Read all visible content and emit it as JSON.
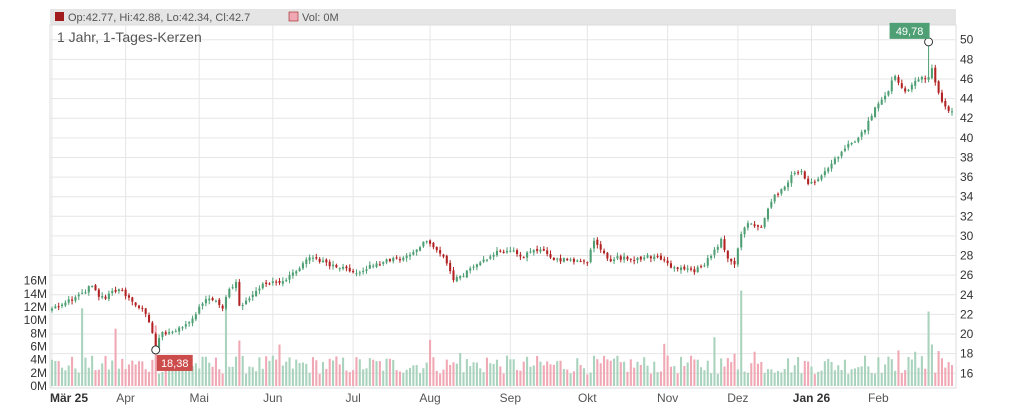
{
  "legend": {
    "ohlc_text": "Op:42.77, Hi:42.88, Lo:42.34, Cl:42.7",
    "volume_text": "Vol: 0M"
  },
  "subtitle": "1 Jahr, 1-Tages-Kerzen",
  "colors": {
    "up": "#4e9f73",
    "down": "#b22222",
    "vol_up": "#a9d3bd",
    "vol_down": "#f0a8b4",
    "grid": "#e6e6e6",
    "high_flag": "#4e9f73",
    "low_flag": "#cc4b4b",
    "legend_ohlc": "#a11c1c",
    "legend_vol": "#f0a8b4"
  },
  "chart_data": {
    "type": "candlestick",
    "price_axis": {
      "min": 14.5,
      "max": 51.5,
      "ticks": [
        16,
        18,
        20,
        22,
        24,
        26,
        28,
        30,
        32,
        34,
        36,
        38,
        40,
        42,
        44,
        46,
        48,
        50
      ]
    },
    "volume_axis": {
      "max": 17,
      "ticks": [
        "0M",
        "2M",
        "4M",
        "6M",
        "8M",
        "10M",
        "12M",
        "14M",
        "16M"
      ]
    },
    "x_labels": [
      {
        "label": "Mär 25",
        "index": 0,
        "bold": true
      },
      {
        "label": "Apr",
        "index": 22
      },
      {
        "label": "Mai",
        "index": 44
      },
      {
        "label": "Jun",
        "index": 66
      },
      {
        "label": "Jul",
        "index": 90
      },
      {
        "label": "Aug",
        "index": 113
      },
      {
        "label": "Sep",
        "index": 137
      },
      {
        "label": "Okt",
        "index": 160
      },
      {
        "label": "Nov",
        "index": 184
      },
      {
        "label": "Dez",
        "index": 205
      },
      {
        "label": "Jan 26",
        "index": 227,
        "bold": true
      },
      {
        "label": "Feb",
        "index": 247
      }
    ],
    "annotations": {
      "high": {
        "label": "49,78",
        "index": 262,
        "value": 49.78
      },
      "low": {
        "label": "18,38",
        "index": 31,
        "value": 18.38
      }
    },
    "candle_count": 270,
    "anchors": [
      [
        0,
        22.6
      ],
      [
        3,
        23.0
      ],
      [
        6,
        23.4
      ],
      [
        9,
        24.2
      ],
      [
        12,
        24.9
      ],
      [
        14,
        23.8
      ],
      [
        16,
        23.6
      ],
      [
        18,
        24.4
      ],
      [
        21,
        24.4
      ],
      [
        24,
        23.3
      ],
      [
        27,
        22.6
      ],
      [
        29,
        21.2
      ],
      [
        31,
        18.6
      ],
      [
        33,
        20.2
      ],
      [
        35,
        20.2
      ],
      [
        37,
        20.3
      ],
      [
        40,
        21.0
      ],
      [
        43,
        22.0
      ],
      [
        45,
        23.1
      ],
      [
        47,
        23.6
      ],
      [
        49,
        23.4
      ],
      [
        51,
        22.6
      ],
      [
        53,
        24.6
      ],
      [
        55,
        25.3
      ],
      [
        56,
        22.9
      ],
      [
        58,
        23.4
      ],
      [
        61,
        24.4
      ],
      [
        64,
        25.1
      ],
      [
        67,
        25.3
      ],
      [
        70,
        25.5
      ],
      [
        73,
        26.4
      ],
      [
        76,
        27.6
      ],
      [
        79,
        27.7
      ],
      [
        82,
        27.3
      ],
      [
        85,
        26.8
      ],
      [
        88,
        26.7
      ],
      [
        91,
        26.2
      ],
      [
        94,
        26.6
      ],
      [
        97,
        27.2
      ],
      [
        100,
        27.6
      ],
      [
        103,
        27.7
      ],
      [
        106,
        28.0
      ],
      [
        109,
        28.6
      ],
      [
        111,
        29.4
      ],
      [
        113,
        29.2
      ],
      [
        116,
        28.2
      ],
      [
        118,
        27.2
      ],
      [
        120,
        25.5
      ],
      [
        122,
        25.9
      ],
      [
        125,
        26.7
      ],
      [
        128,
        27.3
      ],
      [
        131,
        27.9
      ],
      [
        134,
        28.4
      ],
      [
        137,
        28.5
      ],
      [
        140,
        27.9
      ],
      [
        143,
        28.4
      ],
      [
        146,
        28.6
      ],
      [
        149,
        27.8
      ],
      [
        152,
        27.4
      ],
      [
        155,
        27.6
      ],
      [
        158,
        27.4
      ],
      [
        160,
        27.3
      ],
      [
        162,
        29.5
      ],
      [
        164,
        28.6
      ],
      [
        166,
        27.7
      ],
      [
        168,
        27.6
      ],
      [
        171,
        27.9
      ],
      [
        174,
        27.5
      ],
      [
        177,
        27.8
      ],
      [
        180,
        27.9
      ],
      [
        183,
        27.5
      ],
      [
        186,
        26.8
      ],
      [
        189,
        26.6
      ],
      [
        192,
        26.3
      ],
      [
        195,
        27.0
      ],
      [
        198,
        28.6
      ],
      [
        200,
        29.7
      ],
      [
        202,
        27.7
      ],
      [
        204,
        27.1
      ],
      [
        206,
        30.2
      ],
      [
        208,
        31.3
      ],
      [
        210,
        31.0
      ],
      [
        212,
        30.9
      ],
      [
        216,
        34.2
      ],
      [
        219,
        35.0
      ],
      [
        221,
        36.2
      ],
      [
        224,
        36.6
      ],
      [
        226,
        35.3
      ],
      [
        228,
        35.5
      ],
      [
        231,
        36.6
      ],
      [
        234,
        37.9
      ],
      [
        237,
        38.9
      ],
      [
        240,
        39.6
      ],
      [
        243,
        40.8
      ],
      [
        246,
        43.1
      ],
      [
        249,
        44.3
      ],
      [
        252,
        46.3
      ],
      [
        254,
        45.1
      ],
      [
        256,
        44.9
      ],
      [
        258,
        45.8
      ],
      [
        260,
        46.2
      ],
      [
        262,
        46.2
      ],
      [
        263,
        47.1
      ],
      [
        265,
        44.6
      ],
      [
        267,
        43.2
      ],
      [
        269,
        42.7
      ]
    ],
    "volume_spikes": [
      [
        9,
        11.8
      ],
      [
        19,
        8.7
      ],
      [
        31,
        9.2
      ],
      [
        52,
        12.9
      ],
      [
        56,
        6.9
      ],
      [
        68,
        6.3
      ],
      [
        113,
        7.0
      ],
      [
        122,
        5.0
      ],
      [
        130,
        4.3
      ],
      [
        183,
        6.4
      ],
      [
        198,
        7.4
      ],
      [
        204,
        4.9
      ],
      [
        206,
        14.5
      ],
      [
        210,
        5.2
      ],
      [
        243,
        4.6
      ],
      [
        253,
        5.4
      ],
      [
        258,
        5.2
      ],
      [
        262,
        11.3
      ],
      [
        263,
        6.3
      ],
      [
        265,
        5.3
      ],
      [
        266,
        4.2
      ]
    ],
    "volume_base": 3.2,
    "last_close": 42.7
  }
}
